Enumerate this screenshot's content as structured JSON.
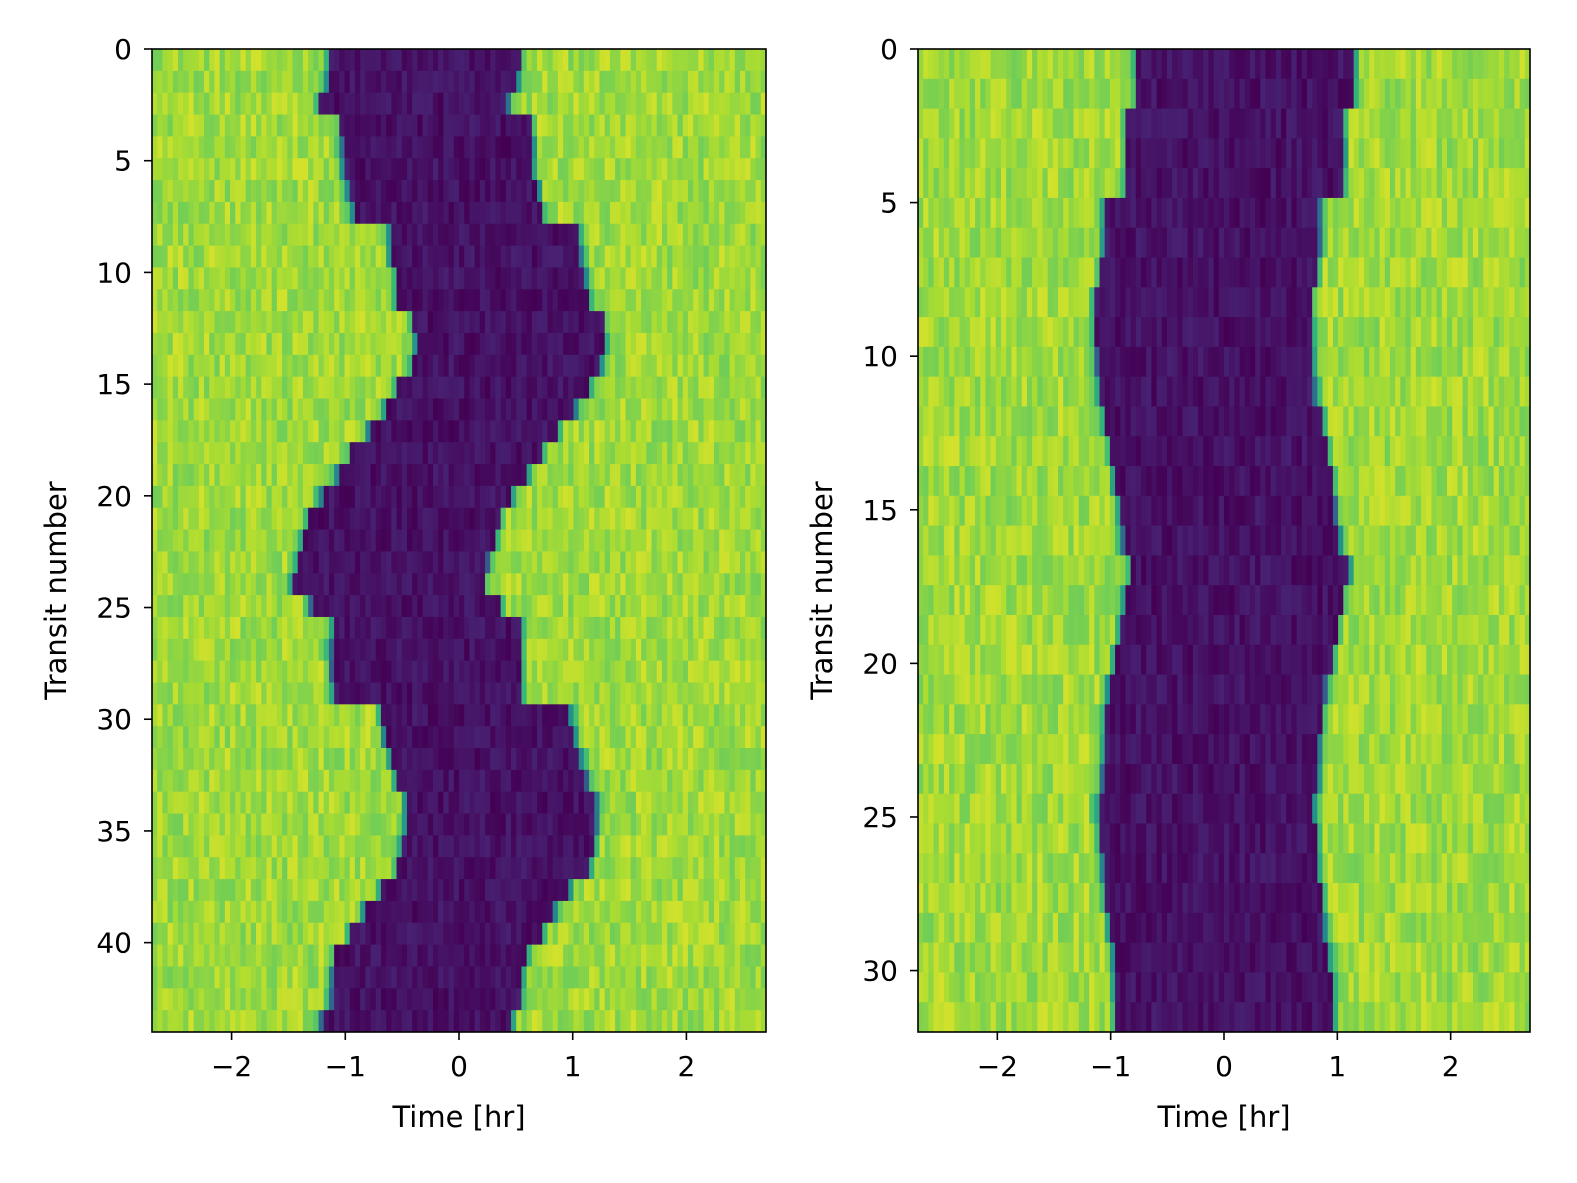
{
  "chart_data": [
    {
      "type": "heatmap",
      "xlabel": "Time [hr]",
      "ylabel": "Transit number",
      "xlim": [
        -2.7,
        2.7
      ],
      "ylim": [
        44,
        0
      ],
      "x_ticks": [
        -2,
        -1,
        0,
        1,
        2
      ],
      "x_tick_labels": [
        "−2",
        "−1",
        "0",
        "1",
        "2"
      ],
      "y_ticks": [
        0,
        5,
        10,
        15,
        20,
        25,
        30,
        35,
        40
      ],
      "y_tick_labels": [
        "0",
        "5",
        "10",
        "15",
        "20",
        "25",
        "30",
        "35",
        "40"
      ],
      "colormap": "viridis",
      "transit_duration_hr": 1.66,
      "transit_center_hr": [
        -0.3,
        -0.32,
        -0.4,
        -0.2,
        -0.19,
        -0.18,
        -0.14,
        -0.1,
        0.22,
        0.24,
        0.28,
        0.3,
        0.43,
        0.45,
        0.42,
        0.3,
        0.19,
        0.04,
        -0.11,
        -0.23,
        -0.38,
        -0.48,
        -0.53,
        -0.58,
        -0.62,
        -0.47,
        -0.28,
        -0.29,
        -0.29,
        -0.28,
        0.15,
        0.18,
        0.24,
        0.29,
        0.37,
        0.37,
        0.34,
        0.3,
        0.14,
        0.0,
        -0.12,
        -0.25,
        -0.29,
        -0.29,
        -0.38
      ]
    },
    {
      "type": "heatmap",
      "xlabel": "Time [hr]",
      "ylabel": "Transit number",
      "xlim": [
        -2.7,
        2.7
      ],
      "ylim": [
        32,
        0
      ],
      "x_ticks": [
        -2,
        -1,
        0,
        1,
        2
      ],
      "x_tick_labels": [
        "−2",
        "−1",
        "0",
        "1",
        "2"
      ],
      "y_ticks": [
        0,
        5,
        10,
        15,
        20,
        25,
        30
      ],
      "y_tick_labels": [
        "0",
        "5",
        "10",
        "15",
        "20",
        "25",
        "30"
      ],
      "colormap": "viridis",
      "transit_duration_hr": 1.9,
      "transit_center_hr": [
        0.19,
        0.19,
        0.1,
        0.1,
        0.1,
        -0.11,
        -0.11,
        -0.13,
        -0.19,
        -0.18,
        -0.17,
        -0.15,
        -0.1,
        -0.05,
        0.0,
        0.03,
        0.06,
        0.14,
        0.08,
        0.04,
        -0.01,
        -0.06,
        -0.09,
        -0.11,
        -0.12,
        -0.16,
        -0.13,
        -0.12,
        -0.1,
        -0.06,
        -0.02,
        0.0,
        0.0
      ]
    }
  ]
}
